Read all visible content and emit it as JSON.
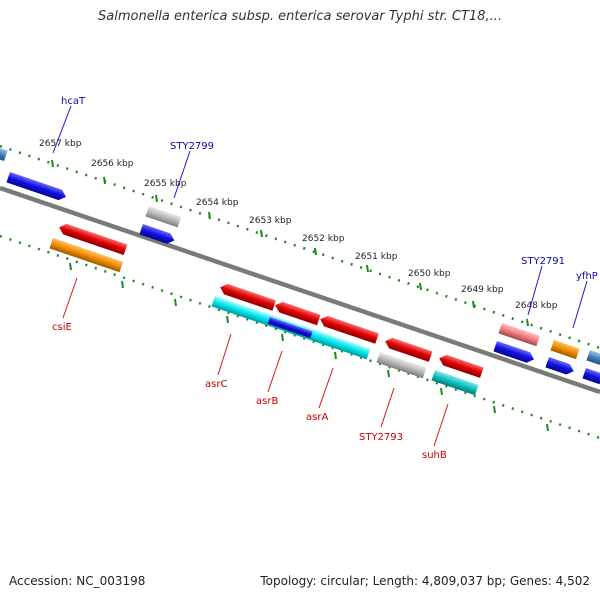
{
  "title": "Salmonella enterica subsp. enterica serovar Typhi str. CT18,...",
  "footer": {
    "accession": "Accession: NC_003198",
    "topology": "Topology: circular; Length: 4,809,037 bp; Genes: 4,502"
  },
  "kbp_ticks": [
    "2657 kbp",
    "2656 kbp",
    "2655 kbp",
    "2654 kbp",
    "2653 kbp",
    "2652 kbp",
    "2651 kbp",
    "2650 kbp",
    "2649 kbp",
    "2648 kbp"
  ],
  "forward_labels": [
    "hcaT",
    "STY2799",
    "STY2791",
    "yfhP"
  ],
  "reverse_labels": [
    "csiE",
    "asrC",
    "asrB",
    "asrA",
    "STY2793",
    "suhB"
  ],
  "colors": {
    "backbone": "#7a7a7a",
    "tick": "#1e8a1e",
    "blue": "#1010e0",
    "red": "#e00000",
    "gray": "#b8b8b8",
    "orange": "#f08c00",
    "cyan": "#00e5ee",
    "teal": "#10c8c8",
    "pink": "#ee7d7d",
    "steel": "#4682b4"
  }
}
